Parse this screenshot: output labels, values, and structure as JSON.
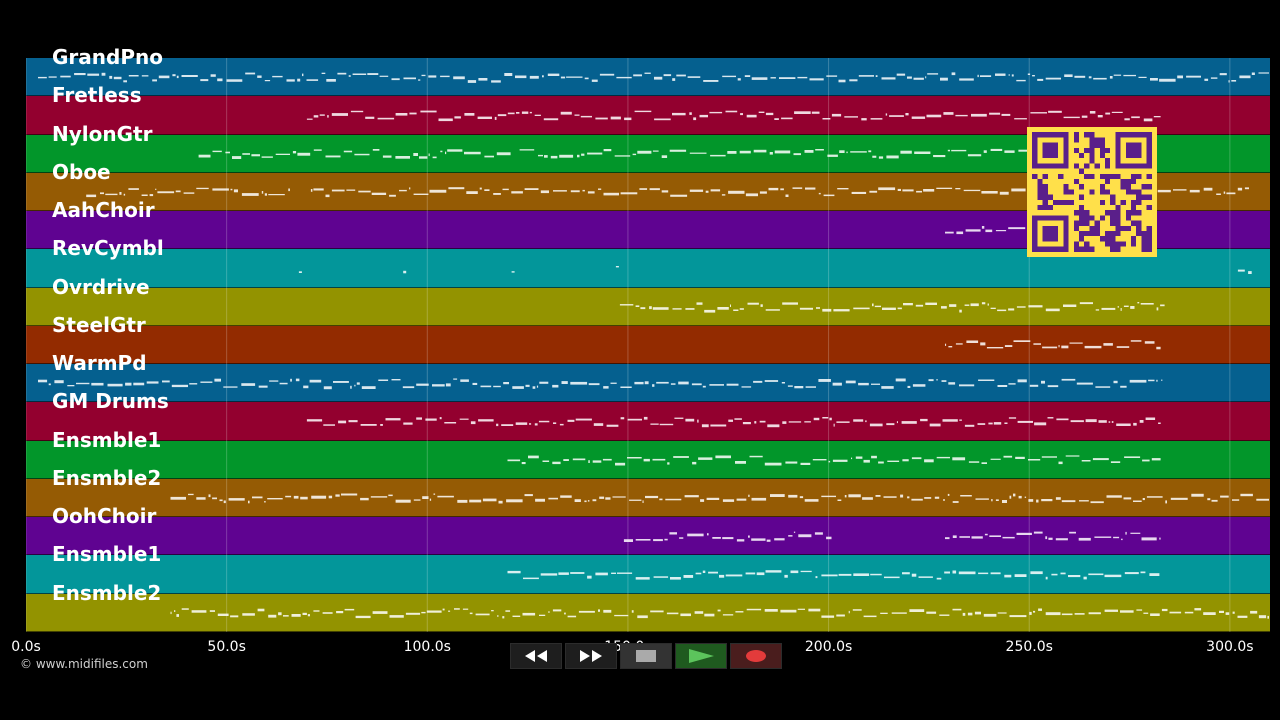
{
  "tracks": [
    {
      "name": "GrandPno",
      "color": "#05608f"
    },
    {
      "name": "Fretless",
      "color": "#93002f"
    },
    {
      "name": "NylonGtr",
      "color": "#02962a"
    },
    {
      "name": "Oboe",
      "color": "#955b04"
    },
    {
      "name": "AahChoir",
      "color": "#5f0391"
    },
    {
      "name": "RevCymbl",
      "color": "#03969a"
    },
    {
      "name": "Ovrdrive",
      "color": "#939300"
    },
    {
      "name": "SteelGtr",
      "color": "#932b00"
    },
    {
      "name": "WarmPd",
      "color": "#05608f"
    },
    {
      "name": "GM Drums",
      "color": "#93002f"
    },
    {
      "name": "Ensmble1",
      "color": "#02962a"
    },
    {
      "name": "Ensmble2",
      "color": "#955b04"
    },
    {
      "name": "OohChoir",
      "color": "#5f0391"
    },
    {
      "name": "Ensmble1",
      "color": "#03969a"
    },
    {
      "name": "Ensmble2",
      "color": "#939300"
    }
  ],
  "timeline": {
    "max_seconds": 310,
    "ticks": [
      {
        "t": 0,
        "label": "0.0s"
      },
      {
        "t": 50,
        "label": "50.0s"
      },
      {
        "t": 100,
        "label": "100.0s"
      },
      {
        "t": 150,
        "label": "150.0s"
      },
      {
        "t": 200,
        "label": "200.0s"
      },
      {
        "t": 250,
        "label": "250.0s"
      },
      {
        "t": 300,
        "label": "300.0s"
      }
    ]
  },
  "activity": [
    [
      [
        3,
        310
      ]
    ],
    [
      [
        70,
        283
      ]
    ],
    [
      [
        43,
        121
      ],
      [
        123,
        282
      ]
    ],
    [
      [
        15,
        66
      ],
      [
        71,
        305
      ]
    ],
    [
      [
        229,
        250
      ]
    ],
    [
      [
        68,
        69
      ],
      [
        94,
        95
      ],
      [
        121,
        122
      ],
      [
        147,
        148
      ],
      [
        302,
        306
      ]
    ],
    [
      [
        148,
        284
      ]
    ],
    [
      [
        229,
        283
      ]
    ],
    [
      [
        3,
        283
      ]
    ],
    [
      [
        70,
        283
      ]
    ],
    [
      [
        120,
        283
      ]
    ],
    [
      [
        36,
        310
      ]
    ],
    [
      [
        149,
        201
      ],
      [
        229,
        283
      ]
    ],
    [
      [
        120,
        283
      ]
    ],
    [
      [
        36,
        310
      ]
    ]
  ],
  "credit": "© www.midifiles.com",
  "transport": {
    "rewind": "rewind-icon",
    "fast_forward": "fast-forward-icon",
    "stop": "stop-icon",
    "play": "play-icon",
    "record": "record-icon"
  },
  "qr_color": "#ffe04a"
}
